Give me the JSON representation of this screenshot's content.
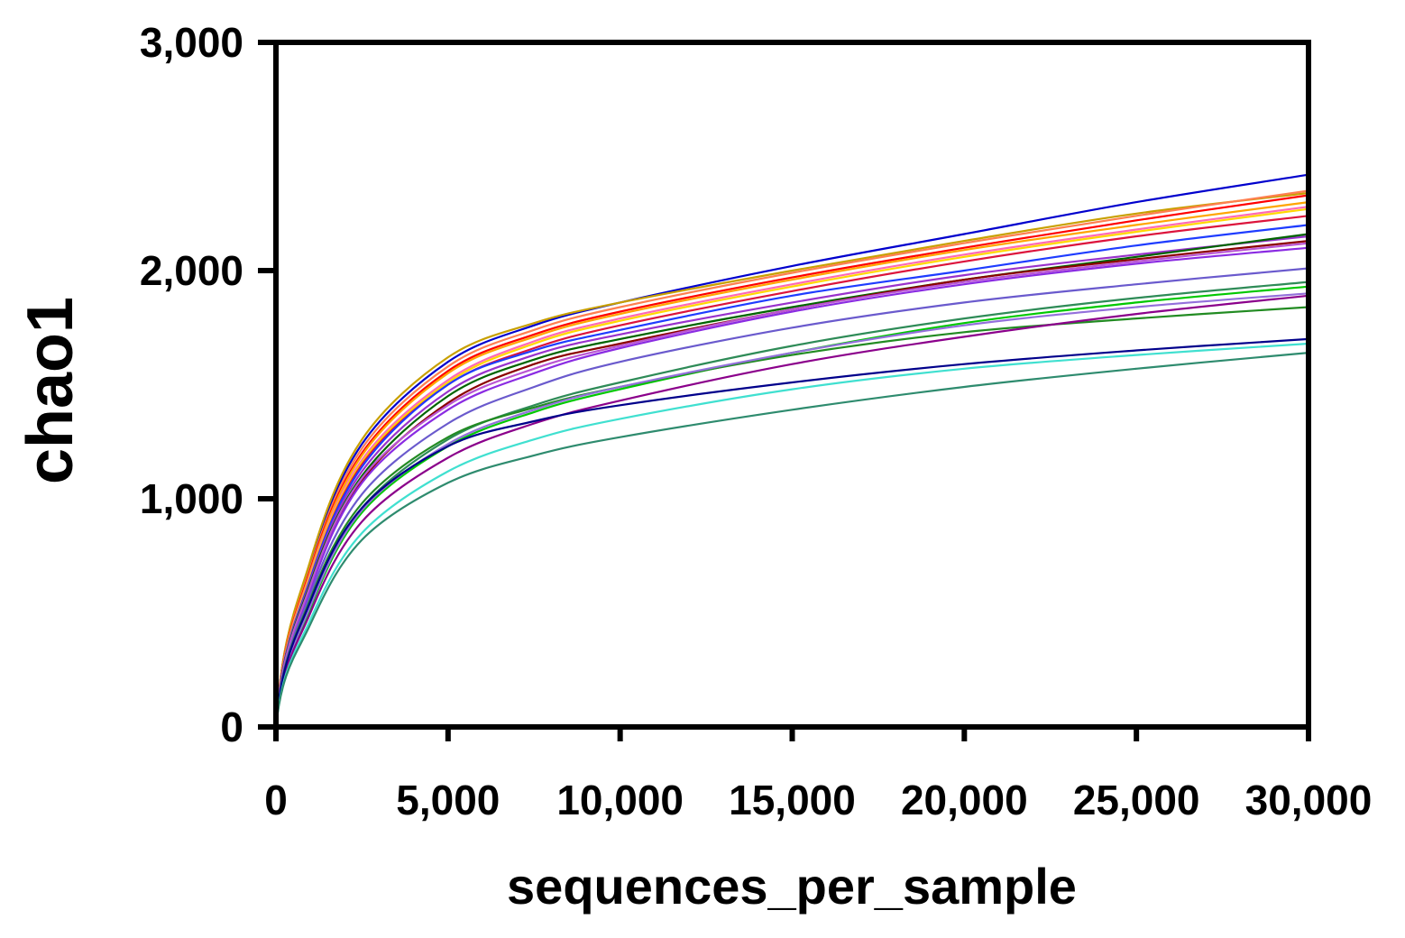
{
  "chart_data": {
    "type": "line",
    "title": "",
    "xlabel": "sequences_per_sample",
    "ylabel": "chao1",
    "xlim": [
      0,
      30000
    ],
    "ylim": [
      0,
      3000
    ],
    "x_ticks": [
      0,
      5000,
      10000,
      15000,
      20000,
      25000,
      30000
    ],
    "x_tick_labels": [
      "0",
      "5,000",
      "10,000",
      "15,000",
      "20,000",
      "25,000",
      "30,000"
    ],
    "y_ticks": [
      0,
      1000,
      2000,
      3000
    ],
    "y_tick_labels": [
      "0",
      "1,000",
      "2,000",
      "3,000"
    ],
    "grid": false,
    "legend": "none",
    "x": [
      0,
      1000,
      2500,
      5000,
      7500,
      10000,
      15000,
      20000,
      25000,
      30000
    ],
    "series": [
      {
        "color": "#0000cd",
        "values": [
          0,
          720,
          1240,
          1600,
          1760,
          1860,
          2020,
          2160,
          2300,
          2420
        ]
      },
      {
        "color": "#c8a000",
        "values": [
          0,
          730,
          1260,
          1620,
          1770,
          1860,
          2000,
          2130,
          2250,
          2340
        ]
      },
      {
        "color": "#ff7f50",
        "values": [
          0,
          700,
          1220,
          1580,
          1740,
          1840,
          1990,
          2120,
          2240,
          2350
        ]
      },
      {
        "color": "#ff0000",
        "values": [
          0,
          690,
          1200,
          1560,
          1720,
          1820,
          1970,
          2100,
          2220,
          2330
        ]
      },
      {
        "color": "#ffa500",
        "values": [
          0,
          680,
          1190,
          1550,
          1710,
          1810,
          1960,
          2090,
          2200,
          2300
        ]
      },
      {
        "color": "#ff69b4",
        "values": [
          0,
          670,
          1170,
          1520,
          1690,
          1790,
          1940,
          2070,
          2180,
          2280
        ]
      },
      {
        "color": "#ffd700",
        "values": [
          0,
          660,
          1160,
          1510,
          1680,
          1780,
          1930,
          2060,
          2170,
          2270
        ]
      },
      {
        "color": "#dc143c",
        "values": [
          0,
          650,
          1150,
          1500,
          1660,
          1760,
          1910,
          2040,
          2150,
          2240
        ]
      },
      {
        "color": "#1e3cff",
        "values": [
          0,
          650,
          1140,
          1500,
          1650,
          1740,
          1890,
          2000,
          2110,
          2200
        ]
      },
      {
        "color": "#9932cc",
        "values": [
          0,
          640,
          1120,
          1470,
          1630,
          1720,
          1860,
          1980,
          2070,
          2150
        ]
      },
      {
        "color": "#006400",
        "values": [
          0,
          630,
          1100,
          1450,
          1610,
          1700,
          1840,
          1960,
          2060,
          2160
        ]
      },
      {
        "color": "#8b0000",
        "values": [
          0,
          610,
          1080,
          1420,
          1590,
          1680,
          1830,
          1960,
          2050,
          2130
        ]
      },
      {
        "color": "#8a2be2",
        "values": [
          0,
          600,
          1070,
          1390,
          1550,
          1660,
          1820,
          1940,
          2030,
          2100
        ]
      },
      {
        "color": "#ba55d3",
        "values": [
          0,
          620,
          1090,
          1410,
          1570,
          1670,
          1830,
          1950,
          2040,
          2120
        ]
      },
      {
        "color": "#6a5acd",
        "values": [
          0,
          580,
          1020,
          1330,
          1490,
          1600,
          1750,
          1860,
          1940,
          2010
        ]
      },
      {
        "color": "#2e8b57",
        "values": [
          0,
          540,
          960,
          1260,
          1410,
          1510,
          1670,
          1790,
          1880,
          1950
        ]
      },
      {
        "color": "#00c800",
        "values": [
          0,
          520,
          940,
          1230,
          1380,
          1480,
          1640,
          1770,
          1860,
          1930
        ]
      },
      {
        "color": "#228b22",
        "values": [
          0,
          560,
          980,
          1270,
          1400,
          1490,
          1630,
          1730,
          1790,
          1840
        ]
      },
      {
        "color": "#9370db",
        "values": [
          0,
          530,
          950,
          1240,
          1390,
          1490,
          1640,
          1760,
          1840,
          1900
        ]
      },
      {
        "color": "#8b008b",
        "values": [
          0,
          500,
          900,
          1180,
          1330,
          1430,
          1590,
          1710,
          1810,
          1890
        ]
      },
      {
        "color": "#00008b",
        "values": [
          0,
          550,
          960,
          1230,
          1340,
          1410,
          1510,
          1590,
          1650,
          1700
        ]
      },
      {
        "color": "#40e0d0",
        "values": [
          0,
          470,
          850,
          1120,
          1260,
          1350,
          1480,
          1570,
          1630,
          1680
        ]
      },
      {
        "color": "#2e8b6e",
        "values": [
          0,
          450,
          820,
          1070,
          1190,
          1270,
          1390,
          1490,
          1570,
          1640
        ]
      }
    ]
  }
}
